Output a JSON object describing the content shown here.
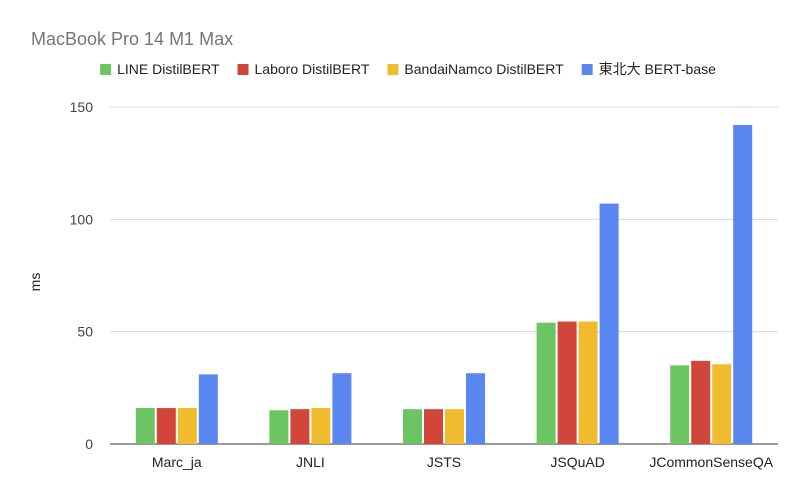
{
  "chart_data": {
    "type": "bar",
    "title": "MacBook Pro 14 M1 Max",
    "xlabel": "",
    "ylabel": "ms",
    "ylim": [
      0,
      150
    ],
    "yticks": [
      "0",
      "50",
      "100",
      "150"
    ],
    "grid": true,
    "legend_position": "top",
    "categories": [
      "Marc_ja",
      "JNLI",
      "JSTS",
      "JSQuAD",
      "JCommonSenseQA"
    ],
    "series": [
      {
        "name": "LINE DistilBERT",
        "color": "#6cc463",
        "values": [
          16,
          15,
          15.5,
          54,
          35
        ]
      },
      {
        "name": "Laboro DistilBERT",
        "color": "#d2453b",
        "values": [
          16,
          15.5,
          15.5,
          54.5,
          37
        ]
      },
      {
        "name": "BandaiNamco DistilBERT",
        "color": "#f0bb2d",
        "values": [
          16,
          16,
          15.5,
          54.5,
          35.5
        ]
      },
      {
        "name": "東北大 BERT-base",
        "color": "#5a87ef",
        "values": [
          31,
          31.5,
          31.5,
          107,
          142
        ]
      }
    ]
  }
}
